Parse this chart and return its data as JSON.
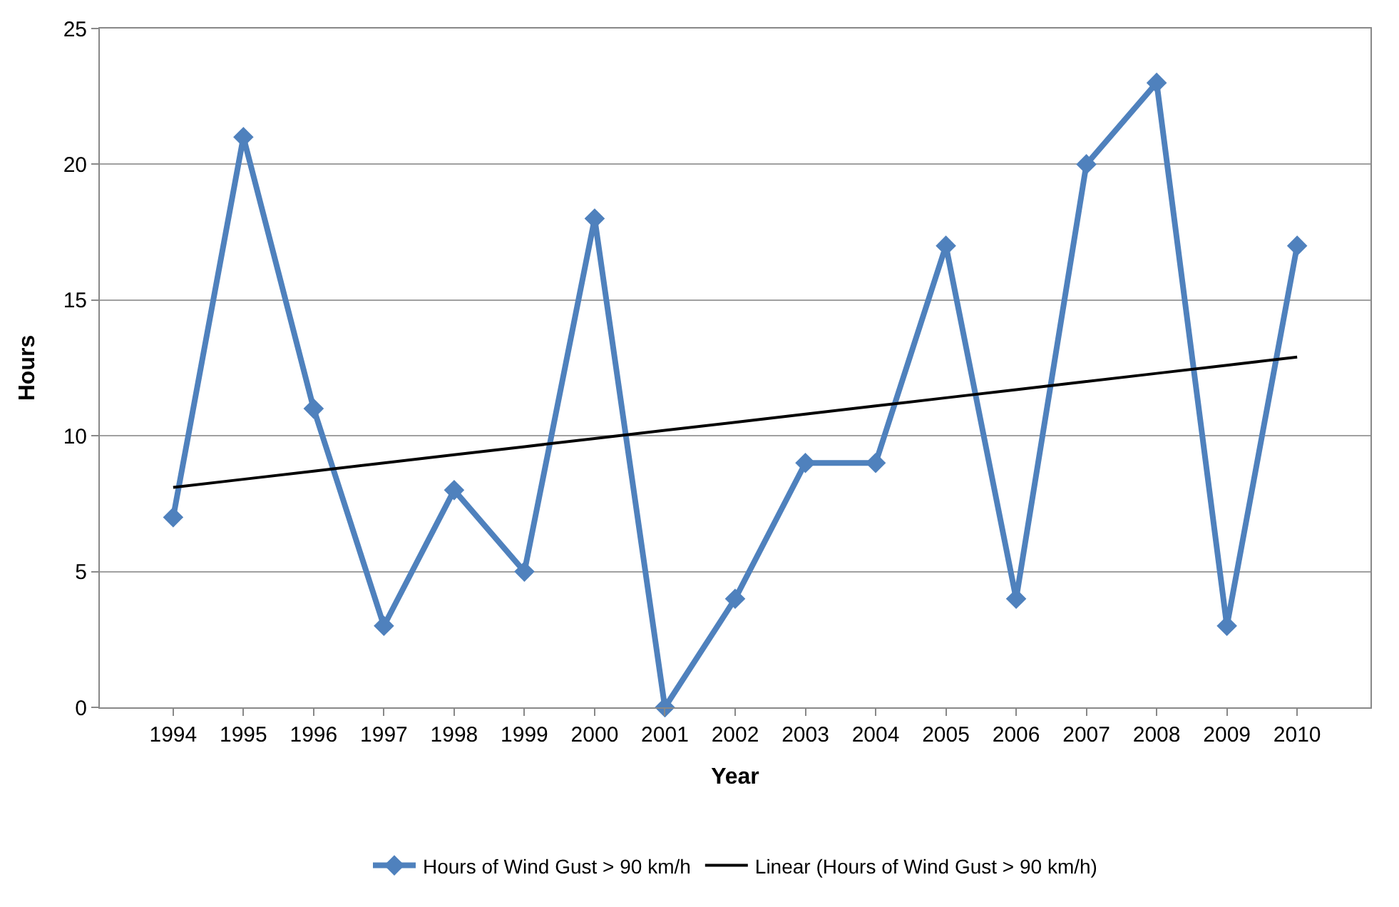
{
  "chart_data": {
    "type": "line",
    "xlabel": "Year",
    "ylabel": "Hours",
    "categories": [
      "1994",
      "1995",
      "1996",
      "1997",
      "1998",
      "1999",
      "2000",
      "2001",
      "2002",
      "2003",
      "2004",
      "2005",
      "2006",
      "2007",
      "2008",
      "2009",
      "2010"
    ],
    "series": [
      {
        "name": "Hours of Wind Gust > 90 km/h",
        "color": "#4f81bd",
        "marker": "diamond",
        "values": [
          7,
          21,
          11,
          3,
          8,
          5,
          18,
          0,
          4,
          9,
          9,
          17,
          4,
          20,
          23,
          3,
          17
        ]
      },
      {
        "name": "Linear (Hours of Wind Gust > 90 km/h)",
        "color": "#000000",
        "marker": "none",
        "values": [
          8.1,
          8.4,
          8.7,
          9.0,
          9.3,
          9.6,
          9.9,
          10.2,
          10.5,
          10.8,
          11.1,
          11.4,
          11.7,
          12.0,
          12.3,
          12.6,
          12.9
        ]
      }
    ],
    "ylim": [
      0,
      25
    ],
    "yticks": [
      0,
      5,
      10,
      15,
      20,
      25
    ],
    "grid": "y",
    "legend": "bottom"
  }
}
